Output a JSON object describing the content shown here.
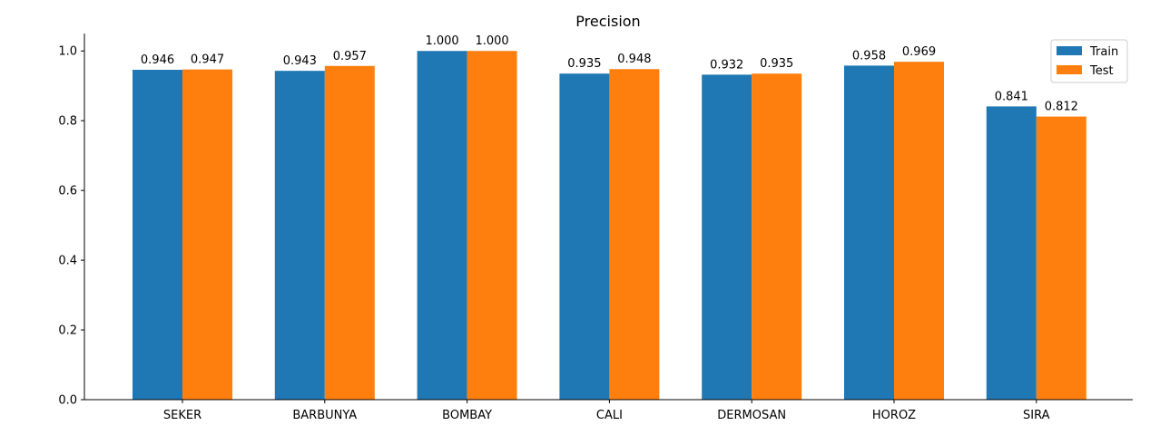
{
  "chart_data": {
    "type": "bar",
    "title": "Precision",
    "xlabel": "",
    "ylabel": "",
    "categories": [
      "SEKER",
      "BARBUNYA",
      "BOMBAY",
      "CALI",
      "DERMOSAN",
      "HOROZ",
      "SIRA"
    ],
    "series": [
      {
        "name": "Train",
        "color": "#1f77b4",
        "values": [
          0.946,
          0.943,
          1.0,
          0.935,
          0.932,
          0.958,
          0.841
        ],
        "labels": [
          "0.946",
          "0.943",
          "1.000",
          "0.935",
          "0.932",
          "0.958",
          "0.841"
        ]
      },
      {
        "name": "Test",
        "color": "#ff7f0e",
        "values": [
          0.947,
          0.957,
          1.0,
          0.948,
          0.935,
          0.969,
          0.812
        ],
        "labels": [
          "0.947",
          "0.957",
          "1.000",
          "0.948",
          "0.935",
          "0.969",
          "0.812"
        ]
      }
    ],
    "ylim": [
      0,
      1.05
    ],
    "yticks": [
      0.0,
      0.2,
      0.4,
      0.6,
      0.8,
      1.0
    ],
    "ytick_labels": [
      "0.0",
      "0.2",
      "0.4",
      "0.6",
      "0.8",
      "1.0"
    ],
    "legend": "top-right",
    "grid": false
  }
}
